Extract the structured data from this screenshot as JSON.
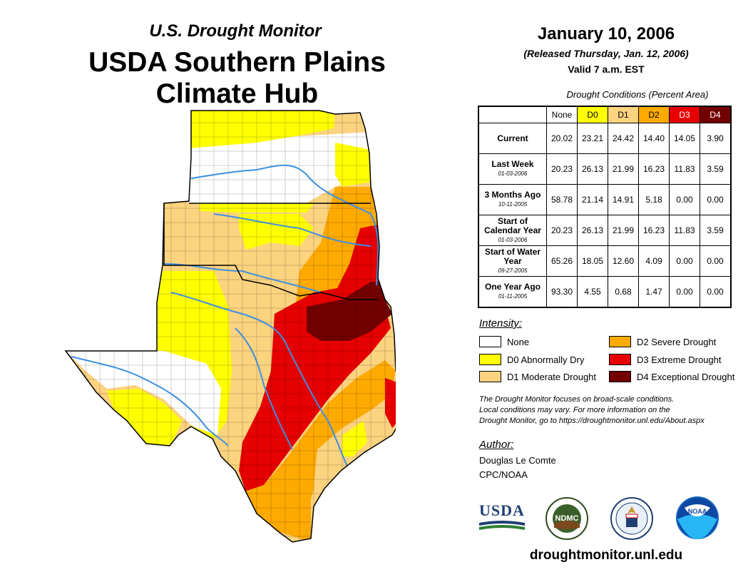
{
  "header": {
    "subtitle": "U.S. Drought Monitor",
    "title_line1": "USDA Southern Plains",
    "title_line2": "Climate Hub",
    "date": "January 10, 2006",
    "released": "(Released Thursday, Jan. 12, 2006)",
    "valid": "Valid 7 a.m. EST"
  },
  "table": {
    "caption": "Drought Conditions (Percent Area)",
    "columns": [
      "None",
      "D0",
      "D1",
      "D2",
      "D3",
      "D4"
    ],
    "rows": [
      {
        "label": "Current",
        "date": "",
        "values": [
          "20.02",
          "23.21",
          "24.42",
          "14.40",
          "14.05",
          "3.90"
        ]
      },
      {
        "label": "Last Week",
        "date": "01-03-2006",
        "values": [
          "20.23",
          "26.13",
          "21.99",
          "16.23",
          "11.83",
          "3.59"
        ]
      },
      {
        "label": "3 Months Ago",
        "date": "10-11-2005",
        "values": [
          "58.78",
          "21.14",
          "14.91",
          "5.18",
          "0.00",
          "0.00"
        ]
      },
      {
        "label": "Start of Calendar Year",
        "date": "01-03-2006",
        "values": [
          "20.23",
          "26.13",
          "21.99",
          "16.23",
          "11.83",
          "3.59"
        ]
      },
      {
        "label": "Start of Water Year",
        "date": "09-27-2005",
        "values": [
          "65.26",
          "18.05",
          "12.60",
          "4.09",
          "0.00",
          "0.00"
        ]
      },
      {
        "label": "One Year Ago",
        "date": "01-11-2005",
        "values": [
          "93.30",
          "4.55",
          "0.68",
          "1.47",
          "0.00",
          "0.00"
        ]
      }
    ]
  },
  "legend": {
    "title": "Intensity:",
    "items": [
      {
        "label": "None",
        "color": "#ffffff"
      },
      {
        "label": "D0 Abnormally Dry",
        "color": "#ffff00"
      },
      {
        "label": "D1 Moderate Drought",
        "color": "#fcd37f"
      },
      {
        "label": "D2 Severe Drought",
        "color": "#ffaa00"
      },
      {
        "label": "D3 Extreme Drought",
        "color": "#e60000"
      },
      {
        "label": "D4 Exceptional Drought",
        "color": "#730000"
      }
    ]
  },
  "note": {
    "line1": "The Drought Monitor focuses on broad-scale conditions.",
    "line2": "Local conditions may vary. For more information on the",
    "line3": "Drought Monitor, go to https://droughtmonitor.unl.edu/About.aspx"
  },
  "author": {
    "heading": "Author:",
    "name": "Douglas Le Comte",
    "org": "CPC/NOAA"
  },
  "logos": {
    "usda": "USDA",
    "ndmc": "NDMC",
    "noaa": "NOAA"
  },
  "footer": {
    "url": "droughtmonitor.unl.edu"
  },
  "colors": {
    "none": "#ffffff",
    "d0": "#ffff00",
    "d1": "#fcd37f",
    "d2": "#ffaa00",
    "d3": "#e60000",
    "d4": "#730000",
    "river": "#3d8fe0"
  }
}
